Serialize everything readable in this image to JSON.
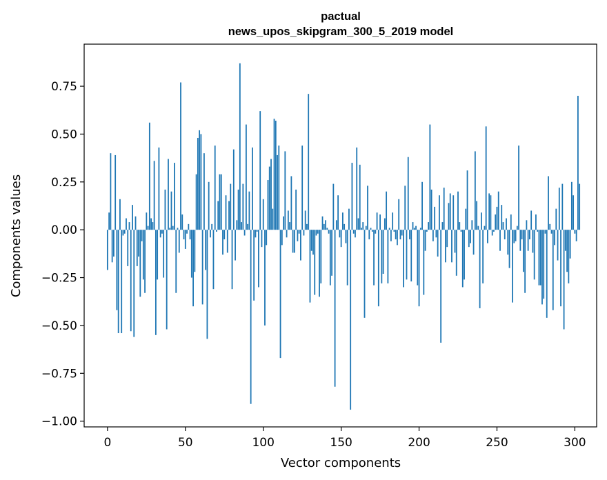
{
  "chart_data": {
    "type": "bar",
    "title_lines": [
      "pactual",
      "news_upos_skipgram_300_5_2019 model"
    ],
    "xlabel": "Vector components",
    "ylabel": "Components values",
    "xlim": [
      -15,
      314
    ],
    "ylim": [
      -1.03,
      0.97
    ],
    "x_ticks": [
      0,
      50,
      100,
      150,
      200,
      250,
      300
    ],
    "x_tick_labels": [
      "0",
      "50",
      "100",
      "150",
      "200",
      "250",
      "300"
    ],
    "y_ticks": [
      -1.0,
      -0.75,
      -0.5,
      -0.25,
      0.0,
      0.25,
      0.5,
      0.75
    ],
    "y_tick_labels": [
      "−1.00",
      "−0.75",
      "−0.50",
      "−0.25",
      "0.00",
      "0.25",
      "0.50",
      "0.75"
    ],
    "bar_color": "#1f77b4",
    "values": [
      -0.21,
      0.09,
      0.4,
      -0.17,
      -0.14,
      0.39,
      -0.42,
      -0.54,
      0.16,
      -0.54,
      -0.03,
      -0.02,
      0.06,
      -0.19,
      0.04,
      -0.53,
      0.13,
      -0.56,
      0.07,
      -0.19,
      -0.14,
      -0.35,
      -0.06,
      -0.26,
      -0.33,
      0.09,
      0.02,
      0.56,
      0.06,
      0.04,
      0.36,
      -0.55,
      -0.26,
      0.43,
      -0.04,
      -0.02,
      -0.25,
      0.21,
      -0.52,
      0.37,
      0.01,
      0.2,
      0.02,
      0.35,
      -0.33,
      0.01,
      -0.12,
      0.77,
      0.08,
      -0.05,
      -0.1,
      -0.02,
      0.03,
      -0.05,
      -0.25,
      -0.4,
      -0.22,
      0.29,
      0.48,
      0.52,
      0.5,
      -0.39,
      0.4,
      -0.21,
      -0.57,
      0.25,
      -0.04,
      0.03,
      -0.31,
      0.44,
      -0.01,
      0.15,
      0.29,
      0.29,
      -0.13,
      -0.05,
      0.18,
      -0.12,
      0.15,
      0.24,
      -0.31,
      0.42,
      -0.16,
      0.05,
      0.21,
      0.87,
      0.04,
      0.24,
      -0.03,
      0.55,
      0.03,
      0.2,
      -0.91,
      0.43,
      -0.37,
      -0.04,
      -0.01,
      -0.3,
      0.62,
      -0.09,
      0.16,
      -0.5,
      -0.08,
      0.26,
      0.33,
      0.37,
      0.11,
      0.58,
      0.57,
      0.39,
      0.44,
      -0.67,
      -0.08,
      0.07,
      0.41,
      -0.04,
      0.1,
      0.04,
      0.28,
      -0.12,
      -0.12,
      0.21,
      -0.06,
      -0.02,
      -0.16,
      0.44,
      -0.03,
      0.1,
      0.03,
      0.71,
      -0.38,
      -0.11,
      -0.13,
      -0.34,
      -0.03,
      -0.02,
      -0.35,
      -0.28,
      0.07,
      0.03,
      0.05,
      0.01,
      -0.02,
      -0.29,
      -0.24,
      0.24,
      -0.82,
      0.05,
      0.18,
      -0.04,
      -0.09,
      0.09,
      0.03,
      -0.07,
      -0.29,
      0.11,
      -0.94,
      0.35,
      -0.02,
      -0.04,
      0.43,
      0.06,
      0.34,
      0.01,
      0.04,
      -0.46,
      0.02,
      0.23,
      -0.05,
      0.01,
      -0.01,
      -0.29,
      -0.02,
      0.09,
      -0.4,
      0.08,
      -0.28,
      -0.23,
      0.06,
      0.2,
      -0.28,
      0.01,
      -0.06,
      0.09,
      -0.01,
      -0.05,
      -0.08,
      0.16,
      -0.05,
      -0.03,
      -0.3,
      0.23,
      -0.26,
      0.38,
      -0.05,
      -0.27,
      0.04,
      0.01,
      0.02,
      -0.29,
      -0.4,
      0.01,
      0.25,
      -0.34,
      -0.11,
      -0.01,
      0.04,
      0.55,
      0.21,
      -0.06,
      0.12,
      -0.04,
      -0.14,
      0.18,
      -0.59,
      0.04,
      0.22,
      -0.17,
      -0.09,
      0.14,
      0.19,
      -0.17,
      0.18,
      -0.12,
      -0.24,
      0.2,
      0.04,
      -0.01,
      -0.3,
      -0.26,
      0.11,
      0.31,
      -0.09,
      -0.07,
      0.05,
      -0.13,
      0.41,
      0.15,
      0.02,
      -0.41,
      0.09,
      -0.28,
      0.02,
      0.54,
      -0.07,
      0.19,
      0.18,
      -0.03,
      -0.01,
      0.08,
      0.12,
      0.2,
      -0.11,
      0.13,
      0.04,
      -0.05,
      0.06,
      -0.13,
      -0.2,
      0.08,
      -0.38,
      -0.07,
      -0.06,
      0.02,
      0.44,
      -0.11,
      -0.05,
      -0.22,
      -0.33,
      0.05,
      -0.11,
      -0.05,
      0.1,
      -0.12,
      -0.26,
      0.08,
      -0.01,
      -0.29,
      -0.29,
      -0.39,
      -0.36,
      -0.02,
      -0.46,
      0.28,
      0.03,
      -0.02,
      -0.42,
      -0.08,
      0.11,
      -0.16,
      0.22,
      -0.4,
      0.24,
      -0.52,
      -0.11,
      -0.22,
      -0.28,
      -0.15,
      0.25,
      0.18,
      -0.02,
      -0.06,
      0.7,
      0.24
    ]
  }
}
